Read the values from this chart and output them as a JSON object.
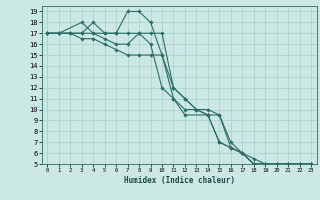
{
  "xlabel": "Humidex (Indice chaleur)",
  "bg_color": "#cce8e4",
  "grid_color": "#aacfcb",
  "line_color": "#2a6e65",
  "xlim": [
    -0.5,
    23.5
  ],
  "ylim": [
    5,
    19.5
  ],
  "xticks": [
    0,
    1,
    2,
    3,
    4,
    5,
    6,
    7,
    8,
    9,
    10,
    11,
    12,
    13,
    14,
    15,
    16,
    17,
    18,
    19,
    20,
    21,
    22,
    23
  ],
  "yticks": [
    5,
    6,
    7,
    8,
    9,
    10,
    11,
    12,
    13,
    14,
    15,
    16,
    17,
    18,
    19
  ],
  "lines": [
    {
      "x": [
        0,
        1,
        2,
        3,
        4,
        5,
        6,
        7,
        8,
        9,
        10,
        11,
        12,
        14,
        15,
        16,
        17,
        18,
        19,
        20,
        21,
        22,
        23
      ],
      "y": [
        17,
        17,
        17,
        17,
        18,
        17,
        17,
        19,
        19,
        18,
        15,
        11,
        9.5,
        9.5,
        7,
        6.5,
        6,
        5,
        5,
        5,
        5,
        5,
        5
      ]
    },
    {
      "x": [
        0,
        1,
        3,
        4,
        5,
        6,
        7,
        8,
        9,
        10,
        11,
        12,
        13,
        14,
        15,
        16,
        17,
        18,
        19,
        20,
        21,
        22,
        23
      ],
      "y": [
        17,
        17,
        18,
        17,
        16.5,
        16,
        16,
        17,
        16,
        12,
        11,
        10,
        10,
        9.5,
        7,
        6.5,
        6,
        5,
        5,
        5,
        5,
        5,
        5
      ]
    },
    {
      "x": [
        0,
        1,
        2,
        3,
        4,
        5,
        6,
        7,
        8,
        9,
        10,
        11,
        12,
        13,
        14,
        15,
        16,
        17,
        18,
        19,
        20,
        21,
        22,
        23
      ],
      "y": [
        17,
        17,
        17,
        16.5,
        16.5,
        16,
        15.5,
        15,
        15,
        15,
        15,
        12,
        11,
        10,
        9.5,
        9.5,
        6.5,
        6,
        5,
        5,
        5,
        5,
        5,
        5
      ]
    },
    {
      "x": [
        0,
        1,
        2,
        3,
        4,
        5,
        6,
        7,
        8,
        9,
        10,
        11,
        12,
        13,
        14,
        15,
        16,
        17,
        18,
        19,
        20,
        21,
        22,
        23
      ],
      "y": [
        17,
        17,
        17,
        17,
        17,
        17,
        17,
        17,
        17,
        17,
        17,
        12,
        11,
        10,
        10,
        9.5,
        7,
        6,
        5.5,
        5,
        5,
        5,
        5,
        5
      ]
    }
  ]
}
